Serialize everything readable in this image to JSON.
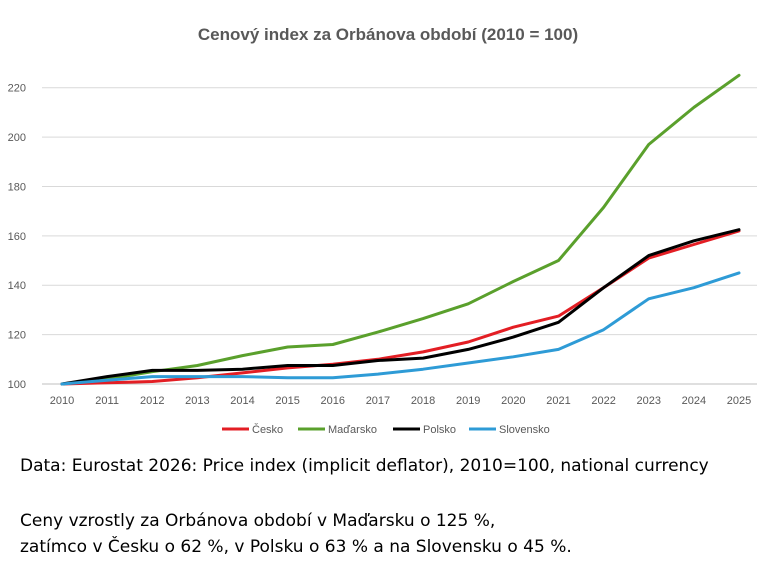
{
  "chart_data": {
    "type": "line",
    "title": "Cenový index za Orbánova období (2010 = 100)",
    "xlabel": "",
    "ylabel": "",
    "x": [
      "2010",
      "2011",
      "2012",
      "2013",
      "2014",
      "2015",
      "2016",
      "2017",
      "2018",
      "2019",
      "2020",
      "2021",
      "2022",
      "2023",
      "2024",
      "2025"
    ],
    "ylim": [
      100,
      230
    ],
    "yticks": [
      100,
      120,
      140,
      160,
      180,
      200,
      220
    ],
    "grid": true,
    "legend_position": "bottom",
    "series": [
      {
        "name": "Česko",
        "color": "#e31e24",
        "values": [
          100,
          100.5,
          101.0,
          102.5,
          104.5,
          106.5,
          108.0,
          110.0,
          113.0,
          117.0,
          123.0,
          127.5,
          139.0,
          151.0,
          156.5,
          162.0
        ]
      },
      {
        "name": "Maďarsko",
        "color": "#5aa02c",
        "values": [
          100,
          102.0,
          105.0,
          107.5,
          111.5,
          115.0,
          116.0,
          121.0,
          126.5,
          132.5,
          141.5,
          150.0,
          171.5,
          197.0,
          212.0,
          225.0
        ]
      },
      {
        "name": "Polsko",
        "color": "#000000",
        "values": [
          100,
          103.0,
          105.5,
          105.5,
          106.0,
          107.5,
          107.5,
          109.5,
          110.5,
          114.0,
          119.0,
          125.0,
          139.0,
          152.0,
          158.0,
          162.5
        ]
      },
      {
        "name": "Slovensko",
        "color": "#2e9bd6",
        "values": [
          100,
          101.5,
          103.0,
          103.0,
          103.0,
          102.5,
          102.5,
          104.0,
          106.0,
          108.5,
          111.0,
          114.0,
          122.0,
          134.5,
          139.0,
          145.0
        ]
      }
    ]
  },
  "notes": {
    "source": "Data: Eurostat 2026: Price index (implicit deflator), 2010=100, national currency",
    "summary_line1": "Ceny vzrostly za Orbánova období v Maďarsku o 125 %,",
    "summary_line2": "zatímco v Česku o 62 %, v Polsku o 63 % a na Slovensku o 45 %."
  }
}
